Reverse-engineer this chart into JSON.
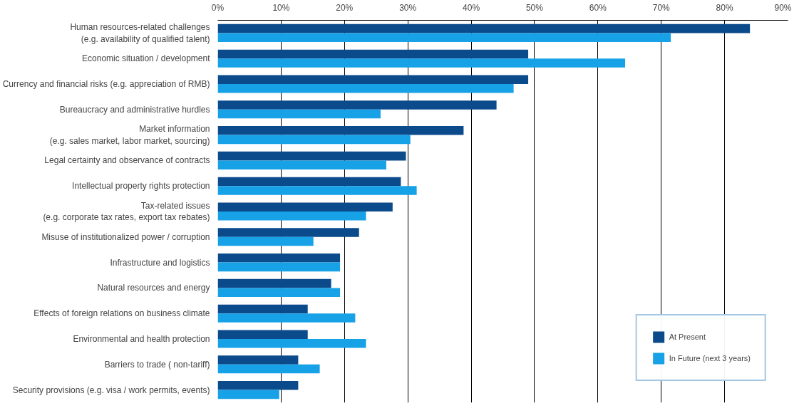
{
  "chart_data": {
    "type": "bar",
    "orientation": "horizontal",
    "categories": [
      "Human resources-related challenges\n(e.g. availability of qualified talent)",
      "Economic situation / development",
      "Currency and financial risks (e.g. appreciation of RMB)",
      "Bureaucracy and administrative hurdles",
      "Market information\n(e.g. sales market, labor market, sourcing)",
      "Legal certainty and observance of contracts",
      "Intellectual property rights protection",
      "Tax-related issues\n(e.g. corporate tax rates, export tax rebates)",
      "Misuse of institutionalized power / corruption",
      "Infrastructure and logistics",
      "Natural resources and energy",
      "Effects of foreign relations on business climate",
      "Environmental and health protection",
      "Barriers to trade ( non-tariff)",
      "Security provisions (e.g. visa / work permits, events)"
    ],
    "series": [
      {
        "name": "At Present",
        "color": "#0b4a8b",
        "values": [
          84,
          49,
          49,
          44,
          38.8,
          29.7,
          28.9,
          27.6,
          22.3,
          19.3,
          17.9,
          14.2,
          14.2,
          12.7,
          12.7
        ]
      },
      {
        "name": "In Future (next 3 years)",
        "color": "#17a1e6",
        "values": [
          71.5,
          64.3,
          46.7,
          25.7,
          30.4,
          26.6,
          31.4,
          23.4,
          15.1,
          19.3,
          19.3,
          21.7,
          23.4,
          16.1,
          9.7
        ]
      }
    ],
    "xlim": [
      0,
      90
    ],
    "xticks": [
      {
        "value": 0,
        "label": "0%"
      },
      {
        "value": 10,
        "label": "10%"
      },
      {
        "value": 20,
        "label": "20%"
      },
      {
        "value": 30,
        "label": "30%"
      },
      {
        "value": 40,
        "label": "40%"
      },
      {
        "value": 50,
        "label": "50%"
      },
      {
        "value": 60,
        "label": "60%"
      },
      {
        "value": 70,
        "label": "70%"
      },
      {
        "value": 80,
        "label": "80%"
      },
      {
        "value": 90,
        "label": "90%"
      }
    ],
    "grid": "x",
    "legend": "bottom right"
  }
}
